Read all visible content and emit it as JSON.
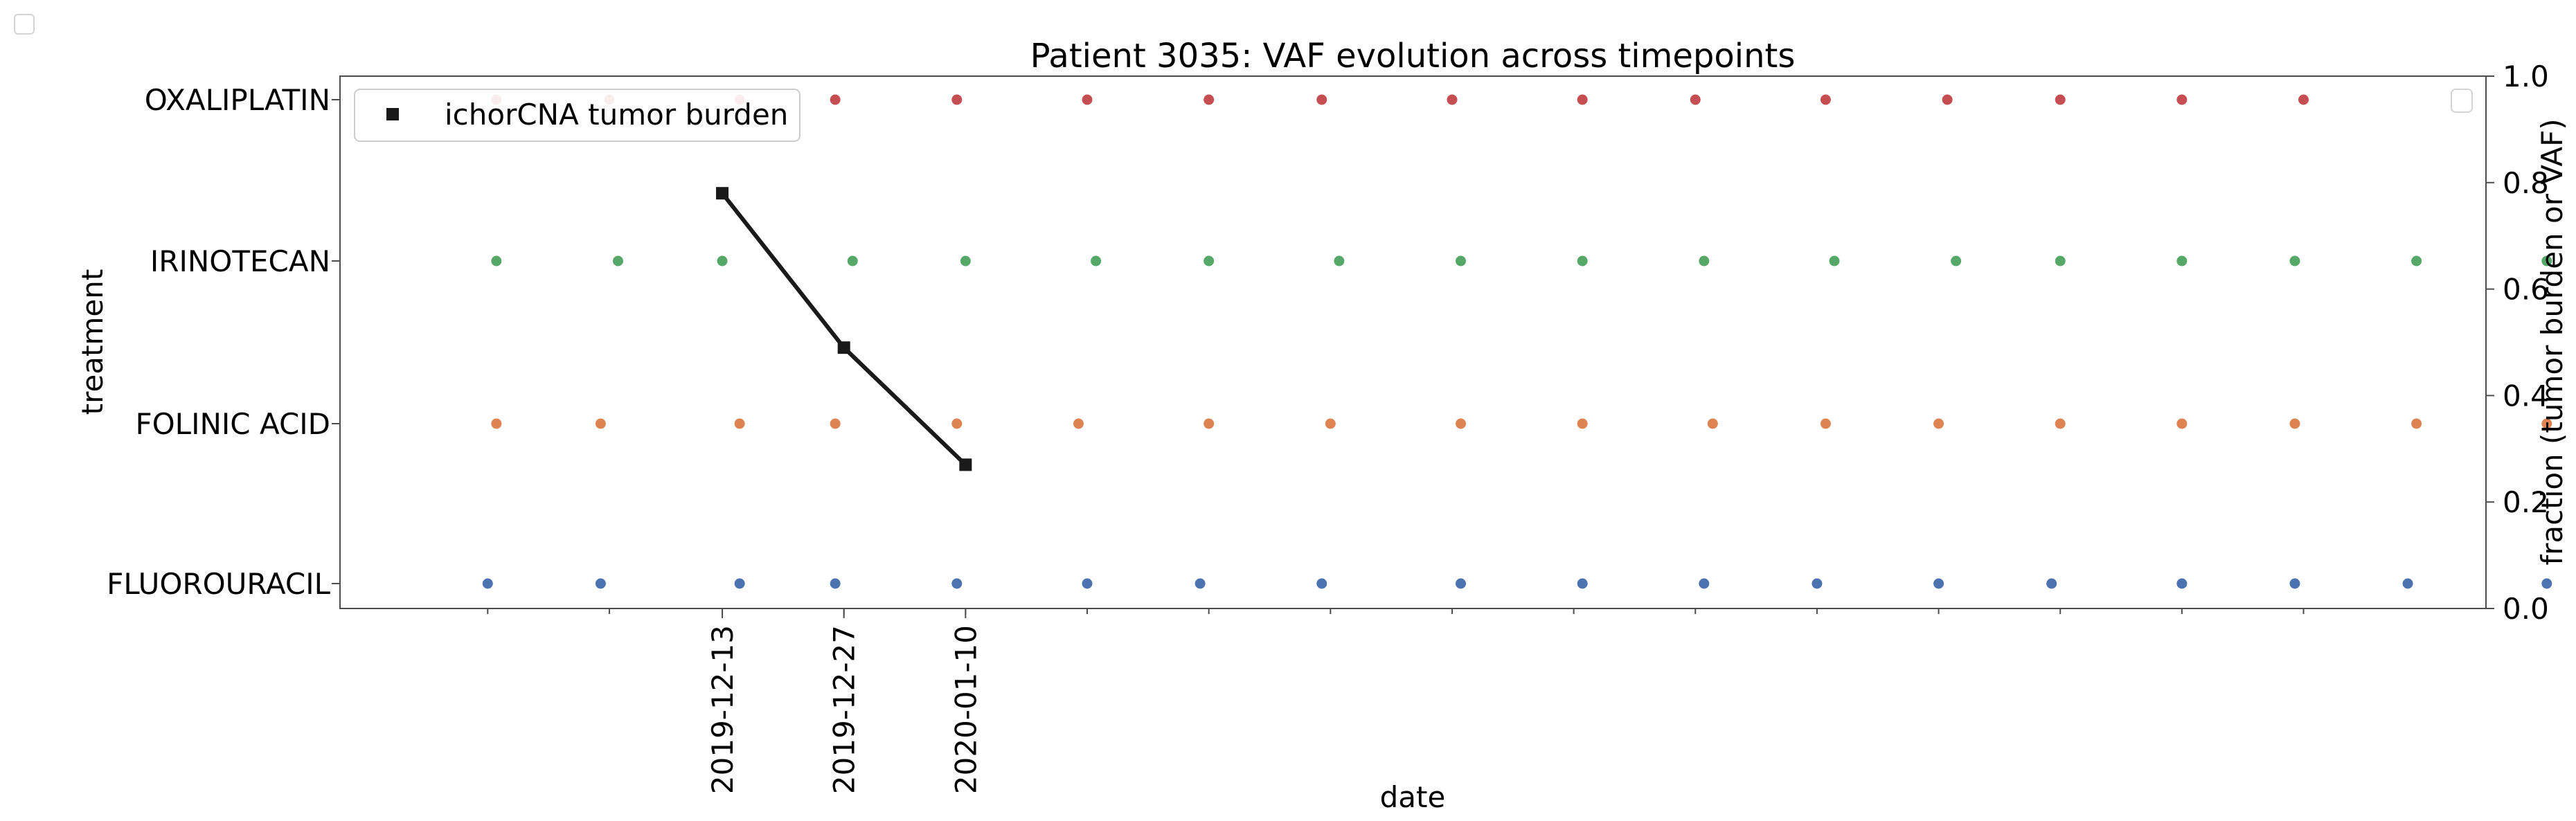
{
  "chart_data": {
    "type": "scatter",
    "title": "Patient 3035: VAF evolution across timepoints",
    "xlabel": "date",
    "ylabel": "treatment",
    "y2label": "fraction (tumor burden or VAF)",
    "categories": [
      "FLUOROURACIL",
      "FOLINIC ACID",
      "IRINOTECAN",
      "OXALIPLATIN"
    ],
    "x_tick_labels": [
      "2019-12-13",
      "2019-12-27",
      "2020-01-10"
    ],
    "y2lim": [
      0.0,
      1.0
    ],
    "y2_ticks": [
      "0.0",
      "0.2",
      "0.4",
      "0.6",
      "0.8",
      "1.0"
    ],
    "grid": false,
    "legend_position": "top-left",
    "xlim": [
      "2019-10-30",
      "2020-07-03"
    ],
    "minor_ticks": [
      "2019-11-16",
      "2019-11-30",
      "2019-12-13",
      "2019-12-27",
      "2020-01-10",
      "2020-01-24",
      "2020-02-07",
      "2020-02-21",
      "2020-03-06",
      "2020-03-20",
      "2020-04-03",
      "2020-04-17",
      "2020-05-01",
      "2020-05-15",
      "2020-05-29",
      "2020-06-12"
    ],
    "series": [
      {
        "name": "ichorCNA tumor burden",
        "kind": "line",
        "color": "#1a1a1a",
        "marker": "square",
        "x": [
          "2019-12-13",
          "2019-12-27",
          "2020-01-10"
        ],
        "y": [
          0.78,
          0.49,
          0.27
        ]
      },
      {
        "category": "FLUOROURACIL",
        "color": "#4c72b0",
        "x": [
          "2019-11-16",
          "2019-11-29",
          "2019-12-15",
          "2019-12-26",
          "2020-01-09",
          "2020-01-24",
          "2020-02-06",
          "2020-02-20",
          "2020-03-07",
          "2020-03-21",
          "2020-04-04",
          "2020-04-17",
          "2020-05-01",
          "2020-05-14",
          "2020-05-29",
          "2020-06-11",
          "2020-06-24",
          "2020-07-10"
        ]
      },
      {
        "category": "FOLINIC ACID",
        "color": "#dd8452",
        "x": [
          "2019-11-17",
          "2019-11-29",
          "2019-12-15",
          "2019-12-26",
          "2020-01-09",
          "2020-01-23",
          "2020-02-07",
          "2020-02-21",
          "2020-03-07",
          "2020-03-21",
          "2020-04-05",
          "2020-04-18",
          "2020-05-01",
          "2020-05-15",
          "2020-05-29",
          "2020-06-11",
          "2020-06-25",
          "2020-07-10"
        ]
      },
      {
        "category": "IRINOTECAN",
        "color": "#55a868",
        "x": [
          "2019-11-17",
          "2019-12-01",
          "2019-12-13",
          "2019-12-28",
          "2020-01-10",
          "2020-01-25",
          "2020-02-07",
          "2020-02-22",
          "2020-03-07",
          "2020-03-21",
          "2020-04-04",
          "2020-04-19",
          "2020-05-03",
          "2020-05-15",
          "2020-05-29",
          "2020-06-11",
          "2020-06-25",
          "2020-07-10"
        ]
      },
      {
        "category": "OXALIPLATIN",
        "color": "#c44e52",
        "x": [
          "2019-11-17",
          "2019-11-30",
          "2019-12-15",
          "2019-12-26",
          "2020-01-09",
          "2020-01-24",
          "2020-02-07",
          "2020-02-20",
          "2020-03-06",
          "2020-03-21",
          "2020-04-03",
          "2020-04-18",
          "2020-05-02",
          "2020-05-15",
          "2020-05-29",
          "2020-06-12"
        ]
      }
    ]
  }
}
